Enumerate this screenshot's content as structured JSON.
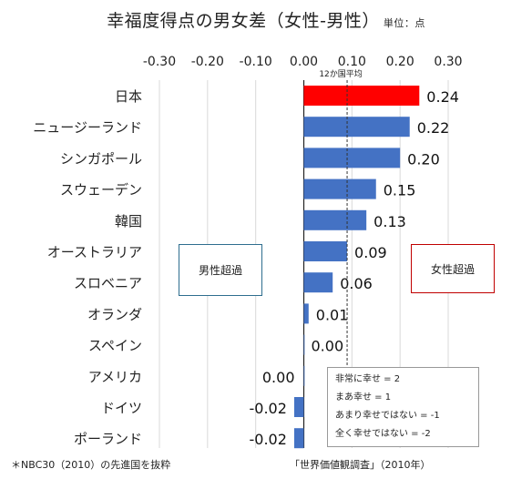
{
  "chart_data": {
    "type": "bar",
    "orientation": "horizontal",
    "title": "幸福度得点の男女差（女性-男性）",
    "unit_label": "単位：点",
    "categories": [
      "日本",
      "ニュージーランド",
      "シンガポール",
      "スウェーデン",
      "韓国",
      "オーストラリア",
      "スロベニア",
      "オランダ",
      "スペイン",
      "アメリカ",
      "ドイツ",
      "ポーランド"
    ],
    "values": [
      0.24,
      0.22,
      0.2,
      0.15,
      0.13,
      0.09,
      0.06,
      0.01,
      0.0,
      0.0,
      -0.02,
      -0.02
    ],
    "value_labels": [
      "0.24",
      "0.22",
      "0.20",
      "0.15",
      "0.13",
      "0.09",
      "0.06",
      "0.01",
      "0.00",
      "0.00",
      "-0.02",
      "-0.02"
    ],
    "highlight_index": 0,
    "xlim": [
      -0.3,
      0.3
    ],
    "xticks": [
      "-0.30",
      "-0.20",
      "-0.10",
      "0.00",
      "0.10",
      "0.20",
      "0.30"
    ],
    "reference_line": {
      "value": 0.09,
      "label": "12か国平均"
    },
    "grid": true,
    "colors": {
      "highlight": "#ff0000",
      "bar": "#4472c4",
      "grid": "#d9d9d9",
      "male_box": "#2e6e8e",
      "female_box": "#c00000"
    }
  },
  "annotations": {
    "male_excess": "男性超過",
    "female_excess": "女性超過",
    "scale_legend": [
      "非常に幸せ = 2",
      "まあ幸せ = 1",
      "あまり幸せではない = -1",
      "全く幸せではない = -2"
    ]
  },
  "footnotes": {
    "left": "＊NBC30（2010）の先進国を抜粋",
    "right": "「世界価値観調査」（2010年）"
  }
}
